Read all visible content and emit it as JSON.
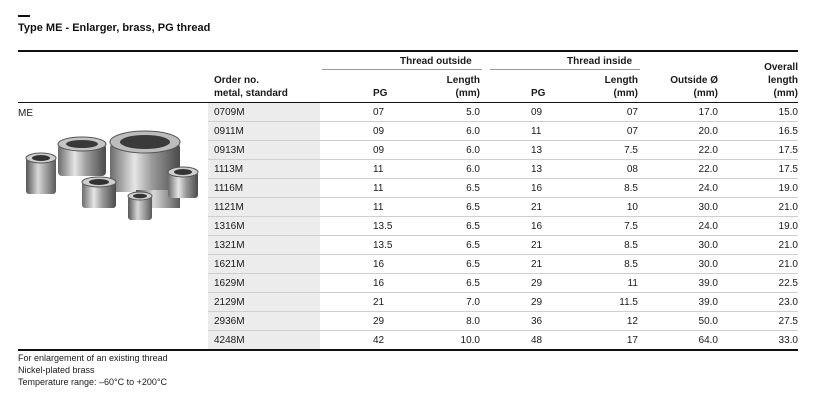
{
  "title": "Type ME - Enlarger, brass, PG thread",
  "group_headers": {
    "outside": "Thread outside",
    "inside": "Thread inside"
  },
  "columns": {
    "order": [
      "Order no.",
      "metal, standard"
    ],
    "out_pg": "PG",
    "out_len": [
      "Length",
      "(mm)"
    ],
    "in_pg": "PG",
    "in_len": [
      "Length",
      "(mm)"
    ],
    "outside_dia": [
      "Outside Ø",
      "(mm)"
    ],
    "overall": [
      "Overall",
      "length",
      "(mm)"
    ]
  },
  "row_label": "ME",
  "rows": [
    {
      "order": "0709M",
      "out_pg": "07",
      "out_len": "5.0",
      "in_pg": "09",
      "in_len": "07",
      "dia": "17.0",
      "overall": "15.0"
    },
    {
      "order": "0911M",
      "out_pg": "09",
      "out_len": "6.0",
      "in_pg": "11",
      "in_len": "07",
      "dia": "20.0",
      "overall": "16.5"
    },
    {
      "order": "0913M",
      "out_pg": "09",
      "out_len": "6.0",
      "in_pg": "13",
      "in_len": "7.5",
      "dia": "22.0",
      "overall": "17.5"
    },
    {
      "order": "1113M",
      "out_pg": "11",
      "out_len": "6.0",
      "in_pg": "13",
      "in_len": "08",
      "dia": "22.0",
      "overall": "17.5"
    },
    {
      "order": "1116M",
      "out_pg": "11",
      "out_len": "6.5",
      "in_pg": "16",
      "in_len": "8.5",
      "dia": "24.0",
      "overall": "19.0"
    },
    {
      "order": "1121M",
      "out_pg": "11",
      "out_len": "6.5",
      "in_pg": "21",
      "in_len": "10",
      "dia": "30.0",
      "overall": "21.0"
    },
    {
      "order": "1316M",
      "out_pg": "13.5",
      "out_len": "6.5",
      "in_pg": "16",
      "in_len": "7.5",
      "dia": "24.0",
      "overall": "19.0"
    },
    {
      "order": "1321M",
      "out_pg": "13.5",
      "out_len": "6.5",
      "in_pg": "21",
      "in_len": "8.5",
      "dia": "30.0",
      "overall": "21.0"
    },
    {
      "order": "1621M",
      "out_pg": "16",
      "out_len": "6.5",
      "in_pg": "21",
      "in_len": "8.5",
      "dia": "30.0",
      "overall": "21.0"
    },
    {
      "order": "1629M",
      "out_pg": "16",
      "out_len": "6.5",
      "in_pg": "29",
      "in_len": "11",
      "dia": "39.0",
      "overall": "22.5"
    },
    {
      "order": "2129M",
      "out_pg": "21",
      "out_len": "7.0",
      "in_pg": "29",
      "in_len": "11.5",
      "dia": "39.0",
      "overall": "23.0"
    },
    {
      "order": "2936M",
      "out_pg": "29",
      "out_len": "8.0",
      "in_pg": "36",
      "in_len": "12",
      "dia": "50.0",
      "overall": "27.5"
    },
    {
      "order": "4248M",
      "out_pg": "42",
      "out_len": "10.0",
      "in_pg": "48",
      "in_len": "17",
      "dia": "64.0",
      "overall": "33.0"
    }
  ],
  "footnotes": [
    "For enlargement of an existing thread",
    "Nickel-plated brass",
    "Temperature range: –60°C to +200°C"
  ]
}
